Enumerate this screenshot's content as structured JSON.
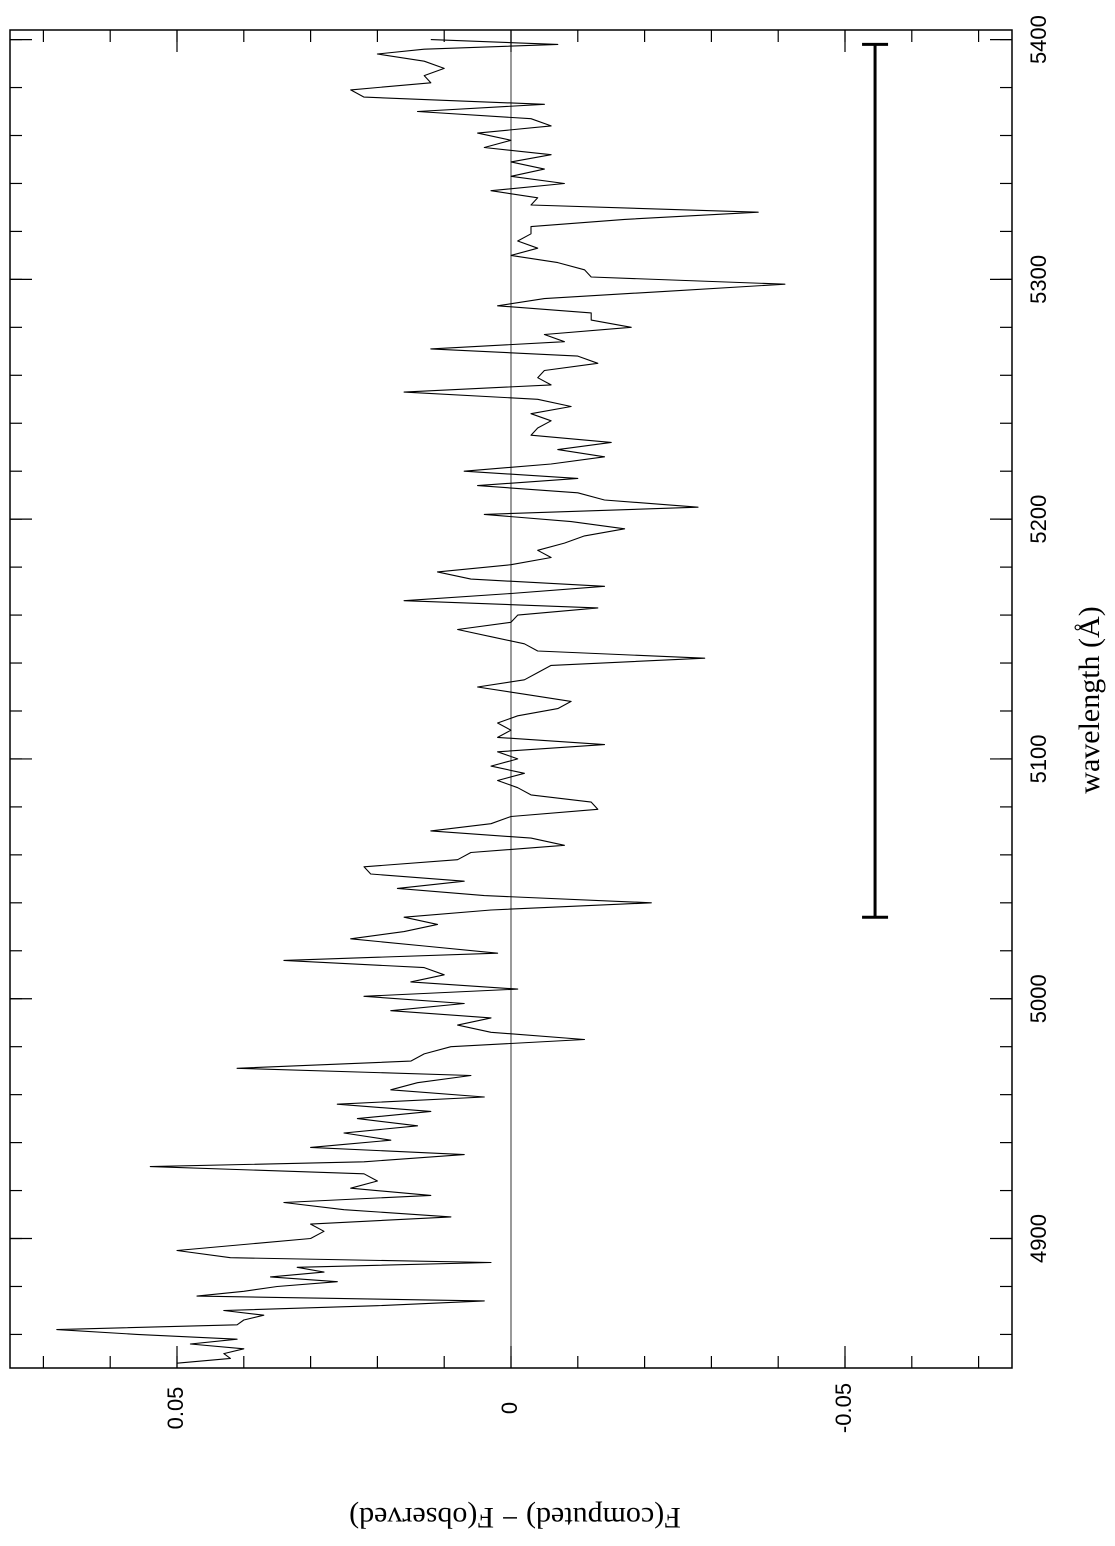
{
  "chart_data": {
    "type": "line",
    "xlabel": "wavelength (Å)",
    "ylabel": "F(computed) − F(observed)",
    "x": [
      4848,
      4850,
      4852,
      4854,
      4856,
      4858,
      4860,
      4862,
      4864,
      4866,
      4868,
      4870,
      4872,
      4874,
      4876,
      4878,
      4880,
      4882,
      4884,
      4886,
      4888,
      4890,
      4892,
      4895,
      4898,
      4900,
      4903,
      4906,
      4909,
      4912,
      4915,
      4918,
      4921,
      4924,
      4927,
      4930,
      4932,
      4935,
      4938,
      4941,
      4944,
      4947,
      4950,
      4953,
      4956,
      4959,
      4962,
      4965,
      4968,
      4971,
      4974,
      4977,
      4980,
      4983,
      4986,
      4989,
      4992,
      4995,
      4998,
      5001,
      5004,
      5007,
      5010,
      5013,
      5016,
      5019,
      5022,
      5025,
      5028,
      5031,
      5034,
      5037,
      5040,
      5043,
      5046,
      5049,
      5052,
      5055,
      5058,
      5061,
      5064,
      5067,
      5070,
      5073,
      5076,
      5079,
      5082,
      5085,
      5088,
      5091,
      5094,
      5097,
      5100,
      5103,
      5106,
      5109,
      5112,
      5115,
      5118,
      5121,
      5124,
      5127,
      5130,
      5133,
      5136,
      5139,
      5142,
      5145,
      5148,
      5151,
      5154,
      5157,
      5160,
      5163,
      5166,
      5169,
      5172,
      5175,
      5178,
      5181,
      5184,
      5187,
      5190,
      5193,
      5196,
      5199,
      5202,
      5205,
      5208,
      5211,
      5214,
      5217,
      5220,
      5223,
      5226,
      5229,
      5232,
      5235,
      5238,
      5241,
      5244,
      5247,
      5250,
      5253,
      5256,
      5259,
      5262,
      5265,
      5268,
      5271,
      5274,
      5277,
      5280,
      5283,
      5286,
      5289,
      5292,
      5295,
      5298,
      5301,
      5304,
      5307,
      5310,
      5313,
      5316,
      5319,
      5322,
      5325,
      5328,
      5331,
      5334,
      5337,
      5340,
      5343,
      5346,
      5349,
      5352,
      5355,
      5358,
      5361,
      5364,
      5367,
      5370,
      5373,
      5376,
      5379,
      5382,
      5385,
      5388,
      5391,
      5394,
      5396,
      5398,
      5400
    ],
    "series": [
      {
        "color": "#000000",
        "values": [
          0.05,
          0.042,
          0.043,
          0.04,
          0.048,
          0.041,
          0.056,
          0.068,
          0.041,
          0.04,
          0.037,
          0.043,
          0.02,
          0.004,
          0.047,
          0.04,
          0.035,
          0.026,
          0.036,
          0.028,
          0.032,
          0.003,
          0.042,
          0.05,
          0.038,
          0.03,
          0.028,
          0.03,
          0.009,
          0.025,
          0.034,
          0.012,
          0.024,
          0.02,
          0.022,
          0.054,
          0.022,
          0.007,
          0.03,
          0.018,
          0.025,
          0.014,
          0.023,
          0.012,
          0.026,
          0.004,
          0.018,
          0.014,
          0.006,
          0.041,
          0.015,
          0.013,
          0.009,
          -0.011,
          0.003,
          0.008,
          0.003,
          0.018,
          0.007,
          0.022,
          -0.001,
          0.015,
          0.01,
          0.013,
          0.034,
          0.002,
          0.013,
          0.024,
          0.016,
          0.011,
          0.016,
          0.003,
          -0.021,
          0.004,
          0.017,
          0.007,
          0.021,
          0.022,
          0.008,
          0.006,
          -0.008,
          -0.003,
          0.012,
          0.003,
          0.0,
          -0.013,
          -0.012,
          -0.003,
          -0.001,
          0.002,
          -0.002,
          0.003,
          -0.001,
          0.002,
          -0.014,
          0.002,
          0.0,
          0.002,
          -0.001,
          -0.007,
          -0.009,
          -0.002,
          0.005,
          -0.002,
          -0.004,
          -0.006,
          -0.029,
          -0.004,
          -0.002,
          0.003,
          0.008,
          0.0,
          -0.001,
          -0.013,
          0.016,
          0.0,
          -0.014,
          0.006,
          0.011,
          0.0,
          -0.006,
          -0.004,
          -0.008,
          -0.011,
          -0.017,
          -0.009,
          0.004,
          -0.028,
          -0.014,
          -0.01,
          0.005,
          -0.01,
          0.007,
          -0.006,
          -0.014,
          -0.007,
          -0.015,
          -0.003,
          -0.004,
          -0.006,
          -0.003,
          -0.009,
          -0.004,
          0.016,
          -0.006,
          -0.004,
          -0.005,
          -0.013,
          -0.01,
          0.012,
          -0.008,
          -0.005,
          -0.018,
          -0.012,
          -0.012,
          0.002,
          -0.005,
          -0.023,
          -0.041,
          -0.012,
          -0.011,
          -0.007,
          0.0,
          -0.004,
          -0.001,
          -0.003,
          -0.003,
          -0.017,
          -0.037,
          -0.003,
          -0.004,
          0.003,
          -0.008,
          0.0,
          -0.005,
          0.0,
          -0.006,
          0.004,
          0.0,
          0.005,
          -0.006,
          -0.003,
          0.014,
          -0.005,
          0.022,
          0.024,
          0.012,
          0.013,
          0.01,
          0.013,
          0.02,
          0.013,
          -0.007,
          0.012
        ]
      }
    ],
    "xlim": [
      4846,
      5404
    ],
    "xticks": [
      4900,
      5000,
      5100,
      5200,
      5300,
      5400
    ],
    "xminor_ticks": [
      4860,
      4880,
      4900,
      4920,
      4940,
      4960,
      4980,
      5000,
      5020,
      5040,
      5060,
      5080,
      5100,
      5120,
      5140,
      5160,
      5180,
      5200,
      5220,
      5240,
      5260,
      5280,
      5300,
      5320,
      5340,
      5360,
      5380,
      5400
    ],
    "ylim": [
      -0.075,
      0.075
    ],
    "yticks": [
      0.05,
      0,
      -0.05
    ],
    "yminor_ticks": [
      -0.07,
      -0.06,
      -0.05,
      -0.04,
      -0.03,
      -0.02,
      -0.01,
      0,
      0.01,
      0.02,
      0.03,
      0.04,
      0.05,
      0.06,
      0.07
    ],
    "reference_line": 0,
    "error_bar": {
      "value": -0.0545,
      "range": [
        5034,
        5398
      ]
    }
  }
}
